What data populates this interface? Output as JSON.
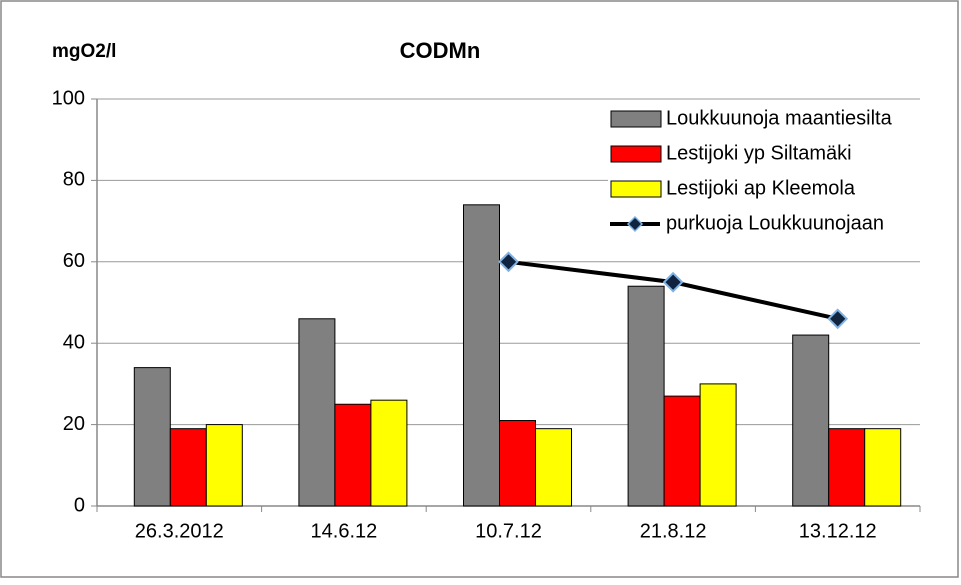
{
  "chart_data": {
    "type": "bar",
    "title": "CODMn",
    "y_label": "mgO2/l",
    "categories": [
      "26.3.2012",
      "14.6.12",
      "10.7.12",
      "21.8.12",
      "13.12.12"
    ],
    "series": [
      {
        "name": "Loukkuunoja maantiesilta",
        "type": "bar",
        "color": "#808080",
        "values": [
          34,
          46,
          74,
          54,
          42
        ]
      },
      {
        "name": "Lestijoki yp Siltamäki",
        "type": "bar",
        "color": "#ff0000",
        "values": [
          19,
          25,
          21,
          27,
          19
        ]
      },
      {
        "name": "Lestijoki ap Kleemola",
        "type": "bar",
        "color": "#ffff00",
        "values": [
          20,
          26,
          19,
          30,
          19
        ]
      },
      {
        "name": "purkuoja Loukkuunojaan",
        "type": "line",
        "color": "#000000",
        "values": [
          null,
          null,
          60,
          55,
          46
        ]
      }
    ],
    "ylim": [
      0,
      100
    ],
    "yticks": [
      0,
      20,
      40,
      60,
      80,
      100
    ],
    "grid": true,
    "legend": "top-right"
  }
}
